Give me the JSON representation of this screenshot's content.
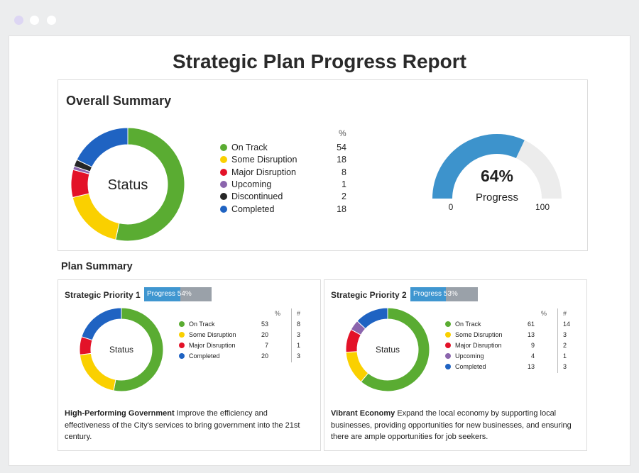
{
  "window": {
    "dot_colors": [
      "#ddd6f3",
      "#ffffff",
      "#ffffff"
    ]
  },
  "report": {
    "title": "Strategic Plan Progress Report"
  },
  "overall": {
    "title": "Overall Summary",
    "donut_center_label": "Status",
    "legend_header": "%",
    "gauge": {
      "value_label": "64%",
      "value": 64,
      "caption": "Progress",
      "min_label": "0",
      "max_label": "100",
      "fill_color": "#3d93cc",
      "track_color": "#ececec"
    }
  },
  "plan_summary": {
    "title": "Plan Summary",
    "priorities": [
      {
        "title": "Strategic Priority 1",
        "progress_label": "Progress 54%",
        "progress": 54,
        "donut_center_label": "Status",
        "pct_header": "%",
        "count_header": "#",
        "desc_bold": "High-Performing Government",
        "desc_text": " Improve the efficiency and effectiveness of the City's services to bring government into the 21st century."
      },
      {
        "title": "Strategic Priority 2",
        "progress_label": "Progress 53%",
        "progress": 53,
        "donut_center_label": "Status",
        "pct_header": "%",
        "count_header": "#",
        "desc_bold": "Vibrant Economy",
        "desc_text": " Expand the local economy by supporting local businesses, providing opportunities for new businesses, and ensuring there are ample opportunities for job seekers."
      }
    ]
  },
  "chart_data": [
    {
      "type": "pie",
      "center_label": "Status",
      "categories": [
        "On Track",
        "Some Disruption",
        "Major Disruption",
        "Upcoming",
        "Discontinued",
        "Completed"
      ],
      "values": [
        54,
        18,
        8,
        1,
        2,
        18
      ],
      "colors": [
        "#5aac32",
        "#fad000",
        "#e31228",
        "#8b65ad",
        "#262626",
        "#1f63c2"
      ]
    },
    {
      "type": "pie",
      "center_label": "Status",
      "categories": [
        "On Track",
        "Some Disruption",
        "Major Disruption",
        "Completed"
      ],
      "values": [
        53,
        20,
        7,
        20
      ],
      "counts": [
        8,
        3,
        1,
        3
      ],
      "colors": [
        "#5aac32",
        "#fad000",
        "#e31228",
        "#1f63c2"
      ]
    },
    {
      "type": "pie",
      "center_label": "Status",
      "categories": [
        "On Track",
        "Some Disruption",
        "Major Disruption",
        "Upcoming",
        "Completed"
      ],
      "values": [
        61,
        13,
        9,
        4,
        13
      ],
      "counts": [
        14,
        3,
        2,
        1,
        3
      ],
      "colors": [
        "#5aac32",
        "#fad000",
        "#e31228",
        "#8b65ad",
        "#1f63c2"
      ]
    }
  ]
}
